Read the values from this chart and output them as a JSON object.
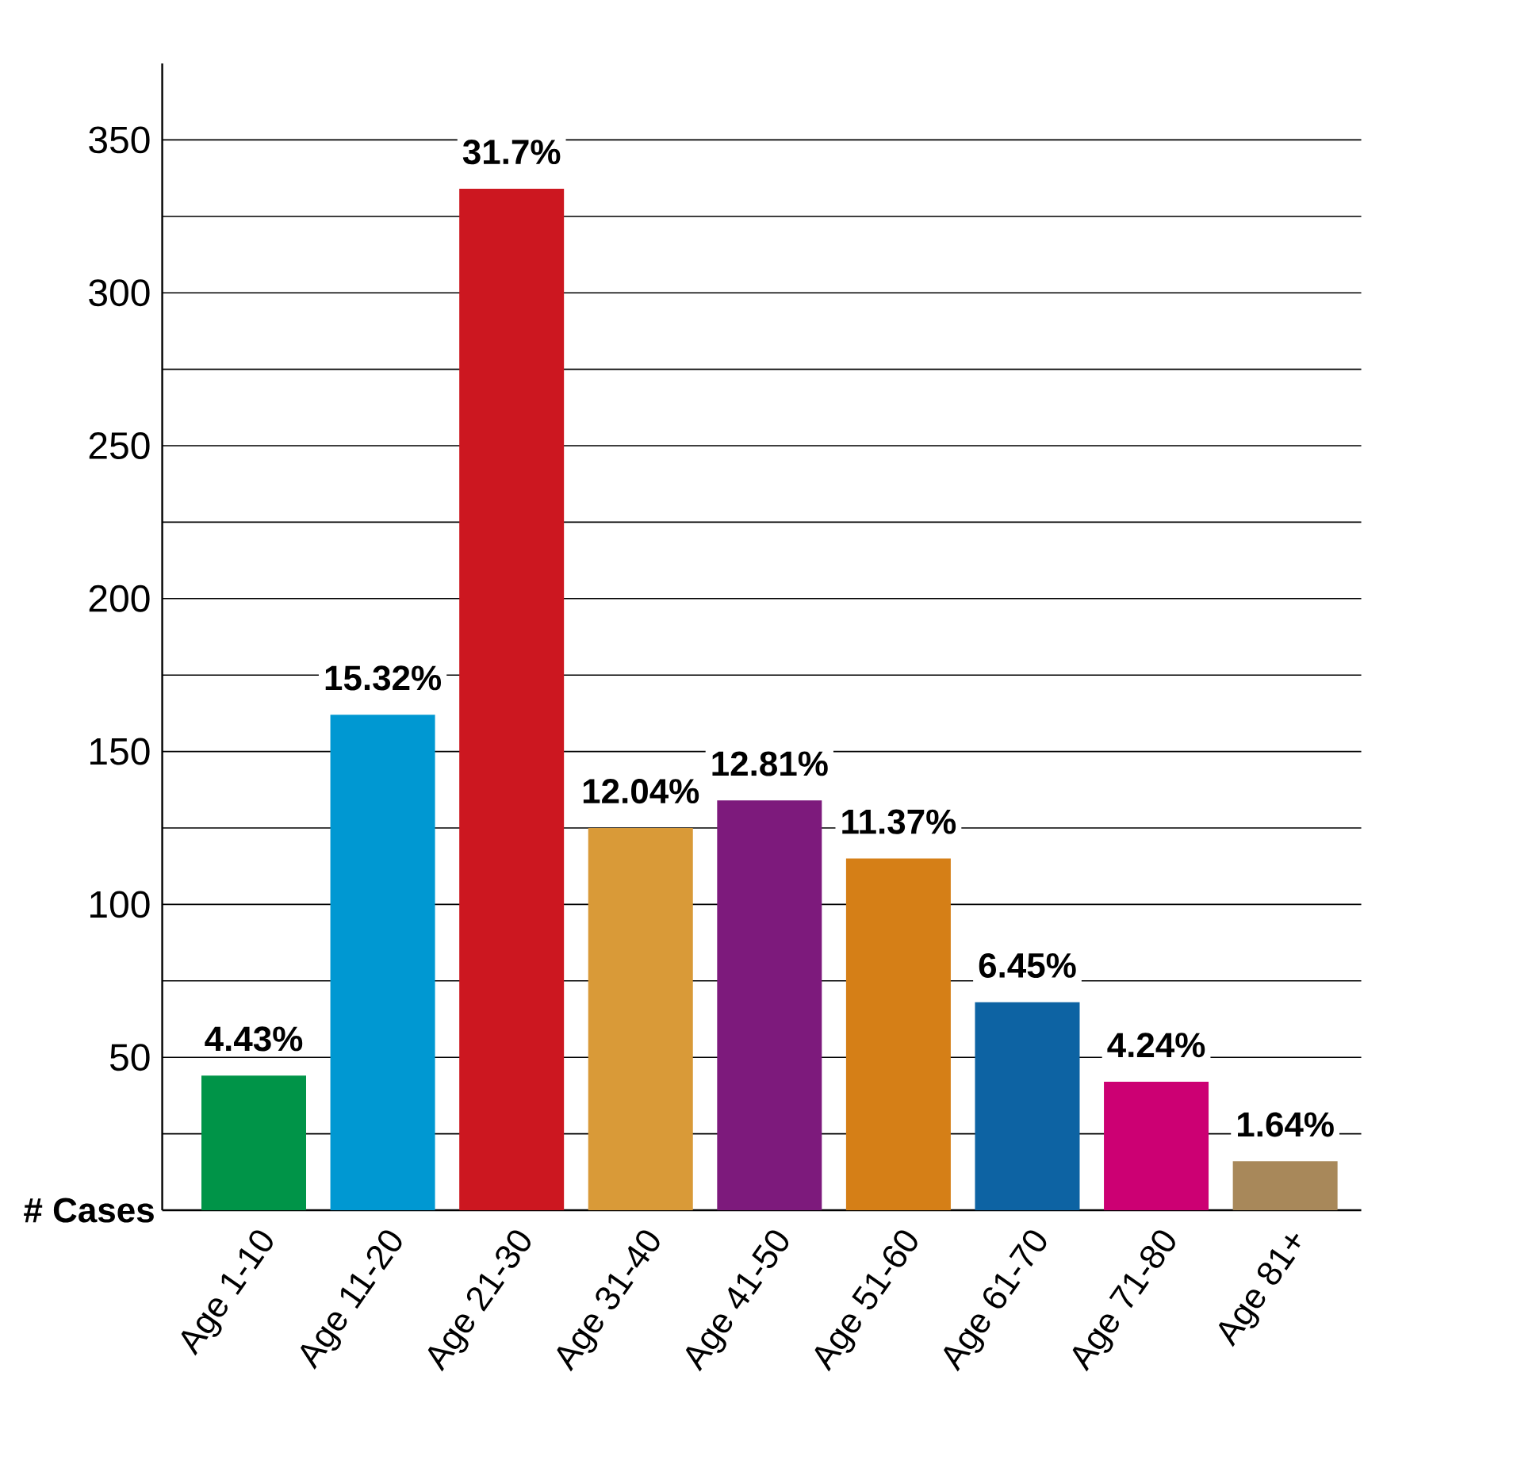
{
  "chart_data": {
    "type": "bar",
    "ylabel": "# Cases",
    "categories": [
      "Age 1-10",
      "Age 11-20",
      "Age 21-30",
      "Age 31-40",
      "Age 41-50",
      "Age 51-60",
      "Age 61-70",
      "Age 71-80",
      "Age 81+"
    ],
    "values": [
      44,
      162,
      334,
      125,
      134,
      115,
      68,
      42,
      16
    ],
    "colors": [
      "#009448",
      "#0098d2",
      "#cc1720",
      "#d99a38",
      "#7d1a7c",
      "#d57f17",
      "#0d63a3",
      "#cc0073",
      "#a8885a"
    ],
    "annotations": [
      {
        "text": "4.43%",
        "x": "Age 1-10",
        "y": 44
      },
      {
        "text": "15.32%",
        "x": "Age 11-20",
        "y": 162
      },
      {
        "text": "31.7%",
        "x": "Age 21-30",
        "y": 334
      },
      {
        "text": "12.04%",
        "x": "Age 31-40",
        "y": 125
      },
      {
        "text": "12.81%",
        "x": "Age 41-50",
        "y": 134
      },
      {
        "text": "11.37%",
        "x": "Age 51-60",
        "y": 115
      },
      {
        "text": "6.45%",
        "x": "Age 61-70",
        "y": 68
      },
      {
        "text": "4.24%",
        "x": "Age 71-80",
        "y": 42
      },
      {
        "text": "1.64%",
        "x": "Age 81+",
        "y": 16
      }
    ],
    "ylim": [
      0,
      375
    ],
    "yticks": [
      {
        "value": 25,
        "label": null
      },
      50,
      {
        "value": 75,
        "label": null
      },
      100,
      {
        "value": 125,
        "label": null
      },
      150,
      {
        "value": 175,
        "label": null
      },
      200,
      {
        "value": 225,
        "label": null
      },
      250,
      {
        "value": 275,
        "label": null
      },
      300,
      {
        "value": 325,
        "label": null
      },
      350
    ],
    "grid": "y"
  }
}
